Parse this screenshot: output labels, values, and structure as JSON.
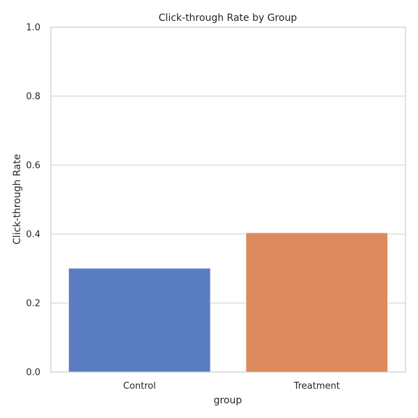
{
  "chart_data": {
    "type": "bar",
    "title": "Click-through Rate by Group",
    "xlabel": "group",
    "ylabel": "Click-through Rate",
    "categories": [
      "Control",
      "Treatment"
    ],
    "values": [
      0.301,
      0.404
    ],
    "colors": [
      "#5a7dc2",
      "#dc8a5e"
    ],
    "ylim": [
      0,
      1
    ],
    "yticks": [
      "0.0",
      "0.2",
      "0.4",
      "0.6",
      "0.8",
      "1.0"
    ],
    "grid": "horizontal",
    "legend": "none"
  }
}
